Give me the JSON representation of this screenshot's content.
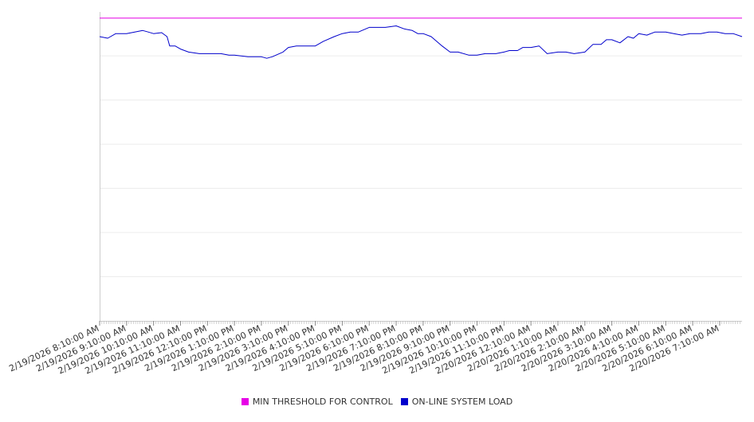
{
  "chart_data": {
    "type": "line",
    "title": "",
    "xlabel": "",
    "ylabel": "",
    "grid": true,
    "legend_position": "bottom-center",
    "ylim": [
      0,
      100
    ],
    "x_tick_labels": [
      "2/19/2026 8:10:00 AM",
      "2/19/2026 9:10:00 AM",
      "2/19/2026 10:10:00 AM",
      "2/19/2026 11:10:00 AM",
      "2/19/2026 12:10:00 PM",
      "2/19/2026 1:10:00 PM",
      "2/19/2026 2:10:00 PM",
      "2/19/2026 3:10:00 PM",
      "2/19/2026 4:10:00 PM",
      "2/19/2026 5:10:00 PM",
      "2/19/2026 6:10:00 PM",
      "2/19/2026 7:10:00 PM",
      "2/19/2026 8:10:00 PM",
      "2/19/2026 9:10:00 PM",
      "2/19/2026 10:10:00 PM",
      "2/19/2026 11:10:00 PM",
      "2/20/2026 12:10:00 AM",
      "2/20/2026 1:10:00 AM",
      "2/20/2026 2:10:00 AM",
      "2/20/2026 3:10:00 AM",
      "2/20/2026 4:10:00 AM",
      "2/20/2026 5:10:00 AM",
      "2/20/2026 6:10:00 AM",
      "2/20/2026 7:10:00 AM"
    ],
    "series": [
      {
        "name": "MIN THRESHOLD FOR CONTROL",
        "color": "#e600e6",
        "hours": [
          0,
          23.83
        ],
        "values": [
          98,
          98
        ]
      },
      {
        "name": "ON-LINE SYSTEM LOAD",
        "color": "#0000cc",
        "hours": [
          0,
          0.3,
          0.6,
          1.0,
          1.3,
          1.6,
          1.8,
          2.0,
          2.3,
          2.5,
          2.6,
          2.8,
          3.0,
          3.3,
          3.7,
          4.2,
          4.5,
          4.8,
          5.0,
          5.5,
          6.0,
          6.2,
          6.4,
          6.8,
          7.0,
          7.3,
          7.7,
          8.0,
          8.3,
          8.7,
          9.0,
          9.3,
          9.6,
          10.0,
          10.3,
          10.6,
          11.0,
          11.3,
          11.6,
          11.8,
          12.0,
          12.3,
          12.7,
          13.0,
          13.3,
          13.7,
          14.0,
          14.3,
          14.7,
          15.0,
          15.2,
          15.5,
          15.7,
          16.0,
          16.3,
          16.6,
          17.0,
          17.3,
          17.6,
          18.0,
          18.3,
          18.6,
          18.8,
          19.0,
          19.3,
          19.6,
          19.8,
          20.0,
          20.3,
          20.6,
          20.8,
          21.0,
          21.3,
          21.6,
          21.9,
          22.1,
          22.3,
          22.6,
          22.9,
          23.2,
          23.5,
          23.83
        ],
        "values": [
          92,
          91.5,
          93,
          93,
          93.5,
          94,
          93.5,
          93,
          93.3,
          92,
          89,
          89,
          88,
          87,
          86.5,
          86.5,
          86.5,
          86,
          86,
          85.5,
          85.5,
          85,
          85.5,
          87,
          88.5,
          89,
          89,
          89,
          90.5,
          92,
          93,
          93.5,
          93.5,
          95,
          95,
          95,
          95.5,
          94.5,
          94,
          93,
          93,
          92,
          89,
          87,
          87,
          86,
          86,
          86.5,
          86.5,
          87,
          87.5,
          87.5,
          88.5,
          88.5,
          89,
          86.5,
          87,
          87,
          86.5,
          87,
          89.5,
          89.5,
          91,
          91,
          90,
          92,
          91.5,
          93,
          92.5,
          93.5,
          93.5,
          93.5,
          93,
          92.5,
          93,
          93,
          93,
          93.5,
          93.5,
          93,
          93,
          92
        ]
      }
    ]
  }
}
